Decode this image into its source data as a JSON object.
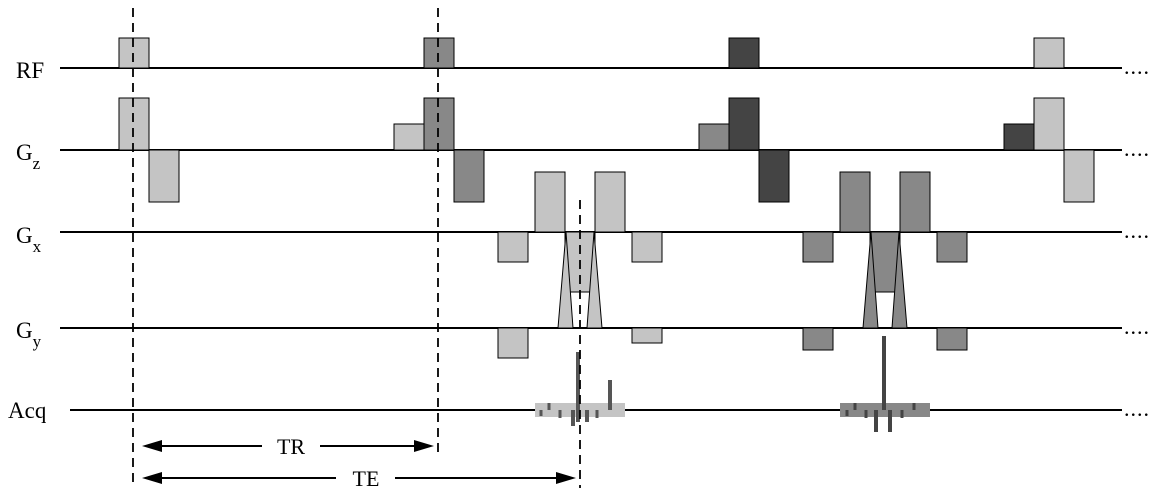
{
  "rows": [
    {
      "id": "rf",
      "label": "RF",
      "sub": ""
    },
    {
      "id": "gz",
      "label": "G",
      "sub": "z"
    },
    {
      "id": "gx",
      "label": "G",
      "sub": "x"
    },
    {
      "id": "gy",
      "label": "G",
      "sub": "y"
    },
    {
      "id": "acq",
      "label": "Acq",
      "sub": ""
    }
  ],
  "continuation": "....",
  "intervals": {
    "tr": {
      "label": "TR"
    },
    "te": {
      "label": "TE"
    }
  },
  "colors": {
    "light": "#c4c4c4",
    "medium": "#888888",
    "dark": "#444444",
    "line": "#000000"
  }
}
